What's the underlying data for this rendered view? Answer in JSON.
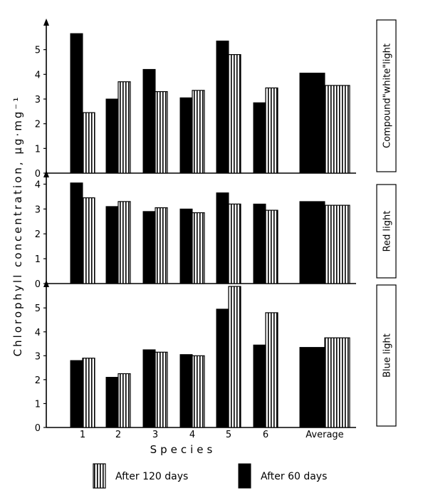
{
  "chart_data": {
    "type": "bar",
    "categories": [
      "1",
      "2",
      "3",
      "4",
      "5",
      "6",
      "Average"
    ],
    "xlabel": "Species",
    "ylabel": "Chlorophyll concentration, μg·mg⁻¹",
    "colors": {
      "after_60": "#000000",
      "after_120_fill": "#ffffff",
      "after_120_stripe": "#000000"
    },
    "legend": {
      "placement": "bottom",
      "entries": [
        {
          "key": "after_120",
          "label": "After 120 days"
        },
        {
          "key": "after_60",
          "label": "After 60 days"
        }
      ]
    },
    "panels": [
      {
        "label": "Compound\"white\"light",
        "ylim": [
          0,
          6
        ],
        "yticks": [
          "0",
          "1",
          "2",
          "3",
          "4",
          "5"
        ],
        "series": [
          {
            "name": "After 60 days",
            "key": "after_60",
            "values": [
              5.65,
              3.0,
              4.2,
              3.05,
              5.35,
              2.85,
              4.05
            ]
          },
          {
            "name": "After 120 days",
            "key": "after_120",
            "values": [
              2.45,
              3.7,
              3.3,
              3.35,
              4.8,
              3.45,
              3.55
            ]
          }
        ]
      },
      {
        "label": "Red light",
        "ylim": [
          0,
          4.3
        ],
        "yticks": [
          "0",
          "1",
          "2",
          "3",
          "4"
        ],
        "series": [
          {
            "name": "After 60 days",
            "key": "after_60",
            "values": [
              4.05,
              3.1,
              2.9,
              3.0,
              3.65,
              3.2,
              3.3
            ]
          },
          {
            "name": "After 120 days",
            "key": "after_120",
            "values": [
              3.45,
              3.3,
              3.05,
              2.85,
              3.2,
              2.95,
              3.15
            ]
          }
        ]
      },
      {
        "label": "Blue light",
        "ylim": [
          0,
          5.9
        ],
        "yticks": [
          "0",
          "1",
          "2",
          "3",
          "4",
          "5"
        ],
        "series": [
          {
            "name": "After 60 days",
            "key": "after_60",
            "values": [
              2.8,
              2.1,
              3.25,
              3.05,
              4.95,
              3.45,
              3.35
            ]
          },
          {
            "name": "After 120 days",
            "key": "after_120",
            "values": [
              2.9,
              2.25,
              3.15,
              3.0,
              5.9,
              4.8,
              3.75
            ]
          }
        ]
      }
    ]
  }
}
